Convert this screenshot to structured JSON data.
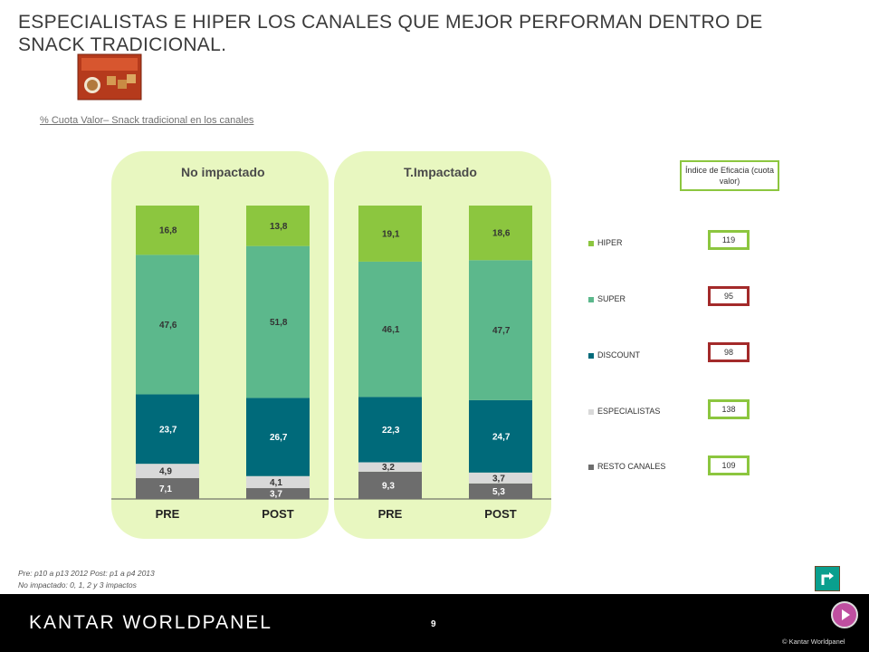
{
  "title": "ESPECIALISTAS E HIPER LOS CANALES QUE MEJOR PERFORMAN DENTRO DE SNACK TRADICIONAL.",
  "subtitle": "% Cuota Valor– Snack tradicional en los canales",
  "index_header": "Índice de Eficacia (cuota valor)",
  "footnote1": "Pre: p10 a p13 2012 Post: p1 a p4 2013",
  "footnote2": "No impactado: 0, 1, 2 y 3 impactos",
  "brand": "KANTAR WORLDPANEL",
  "page_number": "9",
  "copyright": "© Kantar Worldpanel",
  "colors": {
    "HIPER": "#8cc63f",
    "SUPER": "#5cb88c",
    "DISCOUNT": "#006a7a",
    "ESPECIALISTAS": "#d9d9d9",
    "RESTO CANALES": "#6d6d6d",
    "green_border": "#8cc63f",
    "red_border": "#a32a2a"
  },
  "chart_data": {
    "type": "bar",
    "stacked": true,
    "panels": [
      {
        "name": "No impactado",
        "categories": [
          "PRE",
          "POST"
        ],
        "series": [
          {
            "name": "RESTO CANALES",
            "values": [
              7.1,
              3.7
            ],
            "labels": [
              "7,1",
              "3,7"
            ]
          },
          {
            "name": "ESPECIALISTAS",
            "values": [
              4.9,
              4.1
            ],
            "labels": [
              "4,9",
              "4,1"
            ]
          },
          {
            "name": "DISCOUNT",
            "values": [
              23.7,
              26.7
            ],
            "labels": [
              "23,7",
              "26,7"
            ]
          },
          {
            "name": "SUPER",
            "values": [
              47.6,
              51.8
            ],
            "labels": [
              "47,6",
              "51,8"
            ]
          },
          {
            "name": "HIPER",
            "values": [
              16.8,
              13.8
            ],
            "labels": [
              "16,8",
              "13,8"
            ]
          }
        ]
      },
      {
        "name": "T.Impactado",
        "categories": [
          "PRE",
          "POST"
        ],
        "series": [
          {
            "name": "RESTO CANALES",
            "values": [
              9.3,
              5.3
            ],
            "labels": [
              "9,3",
              "5,3"
            ]
          },
          {
            "name": "ESPECIALISTAS",
            "values": [
              3.2,
              3.7
            ],
            "labels": [
              "3,2",
              "3,7"
            ]
          },
          {
            "name": "DISCOUNT",
            "values": [
              22.3,
              24.7
            ],
            "labels": [
              "22,3",
              "24,7"
            ]
          },
          {
            "name": "SUPER",
            "values": [
              46.1,
              47.7
            ],
            "labels": [
              "46,1",
              "47,7"
            ]
          },
          {
            "name": "HIPER",
            "values": [
              19.1,
              18.6
            ],
            "labels": [
              "19,1",
              "18,6"
            ]
          }
        ]
      }
    ],
    "legend": [
      "HIPER",
      "SUPER",
      "DISCOUNT",
      "ESPECIALISTAS",
      "RESTO CANALES"
    ],
    "ylim": [
      0,
      100
    ],
    "efficacy_index": [
      {
        "channel": "HIPER",
        "value": "119",
        "border": "green"
      },
      {
        "channel": "SUPER",
        "value": "95",
        "border": "red"
      },
      {
        "channel": "DISCOUNT",
        "value": "98",
        "border": "red"
      },
      {
        "channel": "ESPECIALISTAS",
        "value": "138",
        "border": "green"
      },
      {
        "channel": "RESTO CANALES",
        "value": "109",
        "border": "green"
      }
    ]
  }
}
